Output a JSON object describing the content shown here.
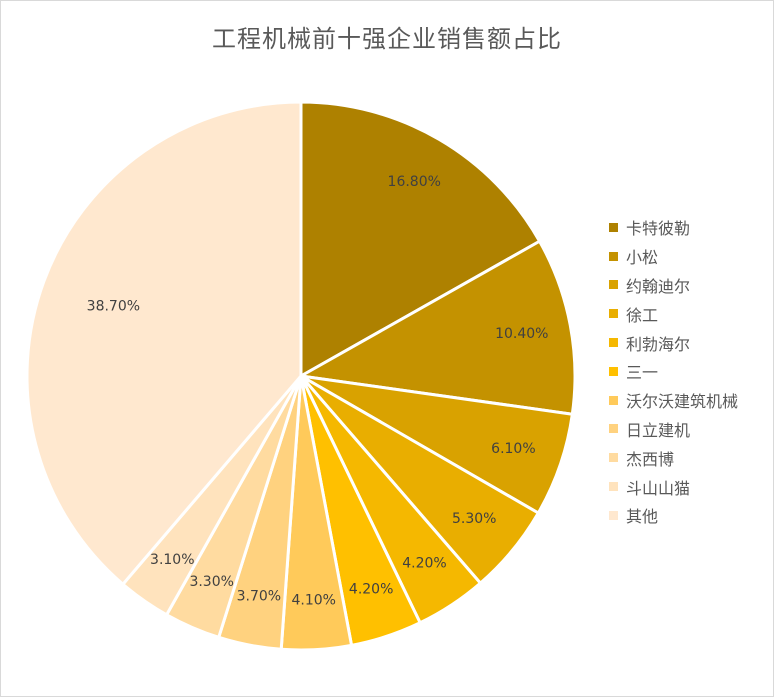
{
  "chart_data": {
    "type": "pie",
    "title": "工程机械前十强企业销售额占比",
    "categories": [
      "卡特彼勒",
      "小松",
      "约翰迪尔",
      "徐工",
      "利勃海尔",
      "三一",
      "沃尔沃建筑机械",
      "日立建机",
      "杰西博",
      "斗山山猫",
      "其他"
    ],
    "values": [
      16.8,
      10.4,
      6.1,
      5.3,
      4.2,
      4.2,
      4.1,
      3.7,
      3.3,
      3.1,
      38.7
    ],
    "labels": [
      "16.80%",
      "10.40%",
      "6.10%",
      "5.30%",
      "4.20%",
      "4.20%",
      "4.10%",
      "3.70%",
      "3.30%",
      "3.10%",
      "38.70%"
    ],
    "colors": [
      "#AE8100",
      "#C49200",
      "#D9A200",
      "#E9AE00",
      "#F5B800",
      "#FFC000",
      "#FFCA5A",
      "#FFD27F",
      "#FFDBA0",
      "#FFE3BD",
      "#FFE8CF"
    ],
    "legend_position": "right"
  }
}
